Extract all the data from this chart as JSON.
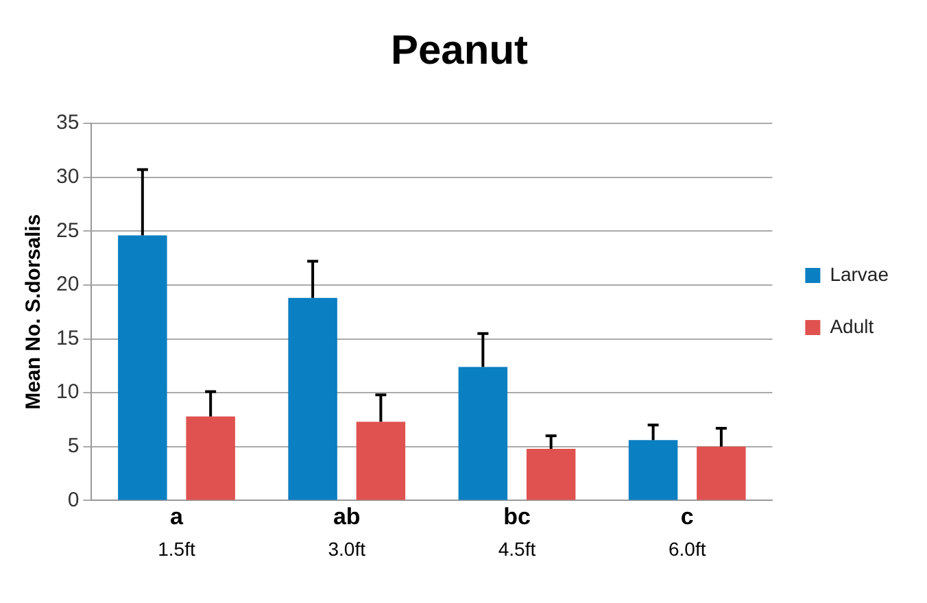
{
  "chart_data": {
    "type": "bar",
    "title": "Peanut",
    "ylabel": "Mean No. S.dorsalis",
    "categories": [
      "1.5ft",
      "3.0ft",
      "4.5ft",
      "6.0ft"
    ],
    "series": [
      {
        "name": "Larvae",
        "color": "#0a7fc2",
        "values": [
          24.6,
          18.8,
          12.4,
          5.6
        ],
        "errors": [
          [
            24.6,
            30.7
          ],
          [
            18.8,
            22.2
          ],
          [
            12.4,
            15.5
          ],
          [
            5.6,
            7.0
          ]
        ]
      },
      {
        "name": "Adult",
        "color": "#e05250",
        "values": [
          7.8,
          7.3,
          4.8,
          5.0
        ],
        "errors": [
          [
            7.8,
            10.1
          ],
          [
            7.3,
            9.8
          ],
          [
            4.8,
            6.0
          ],
          [
            5.0,
            6.7
          ]
        ]
      }
    ],
    "annotations": [
      "a",
      "ab",
      "bc",
      "c"
    ],
    "ylim": [
      0,
      35
    ],
    "yticks": [
      0,
      5,
      10,
      15,
      20,
      25,
      30,
      35
    ],
    "grid": "y",
    "legend": "right"
  }
}
